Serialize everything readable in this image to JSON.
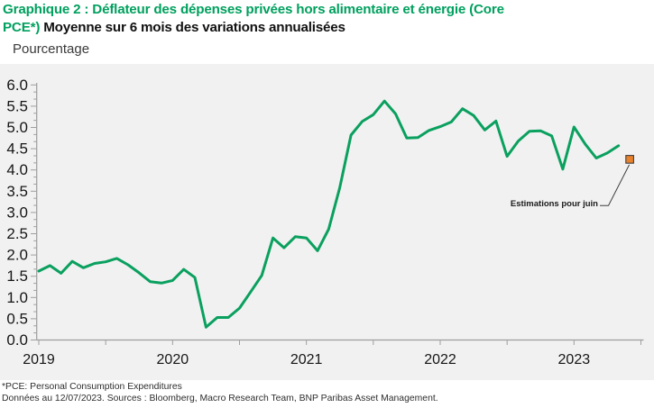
{
  "title": {
    "line1_green": "Graphique 2 : Déflateur des dépenses privées hors alimentaire et énergie (Core",
    "line2_green": "PCE*)",
    "line2_black": "Moyenne sur 6 mois des variations annualisées",
    "accent_color": "#00a05e"
  },
  "subtitle": "Pourcentage",
  "annotation": {
    "label": "Estimations pour juin"
  },
  "footnotes": {
    "line1": "*PCE: Personal Consumption Expenditures",
    "line2": "Données au 12/07/2023. Sources : Bloomberg, Macro Research Team, BNP Paribas Asset Management."
  },
  "chart_data": {
    "type": "line",
    "title": "Déflateur des dépenses privées hors alimentaire et énergie (Core PCE), moyenne sur 6 mois des variations annualisées",
    "ylabel": "Pourcentage",
    "ylim": [
      0,
      6
    ],
    "y_tick_step": 0.5,
    "y_tick_labels": [
      "6.0",
      "5.5",
      "5.0",
      "4.5",
      "4.0",
      "3.5",
      "3.0",
      "2.5",
      "2.0",
      "1.5",
      "1.0",
      "0.5",
      "0.0"
    ],
    "x_tick_labels": [
      "2019",
      "2020",
      "2021",
      "2022",
      "2023"
    ],
    "grid": false,
    "legend": "none",
    "plot_bg": "#f1f1f2",
    "axis_color": "#9e9e9e",
    "series": [
      {
        "name": "Core PCE (moyenne 6 mois des variations annualisées)",
        "color": "#0aa05e",
        "start_month": "2019-01",
        "frequency": "monthly",
        "values": [
          1.62,
          1.75,
          1.57,
          1.85,
          1.7,
          1.8,
          1.84,
          1.92,
          1.77,
          1.58,
          1.37,
          1.34,
          1.4,
          1.66,
          1.47,
          0.3,
          0.53,
          0.53,
          0.75,
          1.13,
          1.52,
          2.4,
          2.17,
          2.43,
          2.4,
          2.1,
          2.61,
          3.59,
          4.82,
          5.14,
          5.3,
          5.62,
          5.32,
          4.75,
          4.76,
          4.93,
          5.02,
          5.13,
          5.44,
          5.28,
          4.94,
          5.15,
          4.32,
          4.68,
          4.91,
          4.92,
          4.8,
          4.02,
          5.01,
          4.61,
          4.28,
          4.4,
          4.57
        ]
      }
    ],
    "estimate": {
      "label": "Estimations pour juin",
      "month": "2023-06",
      "value": 4.25,
      "marker": "square",
      "marker_fill": "#e8812c",
      "marker_stroke": "#3f3f3f"
    }
  }
}
